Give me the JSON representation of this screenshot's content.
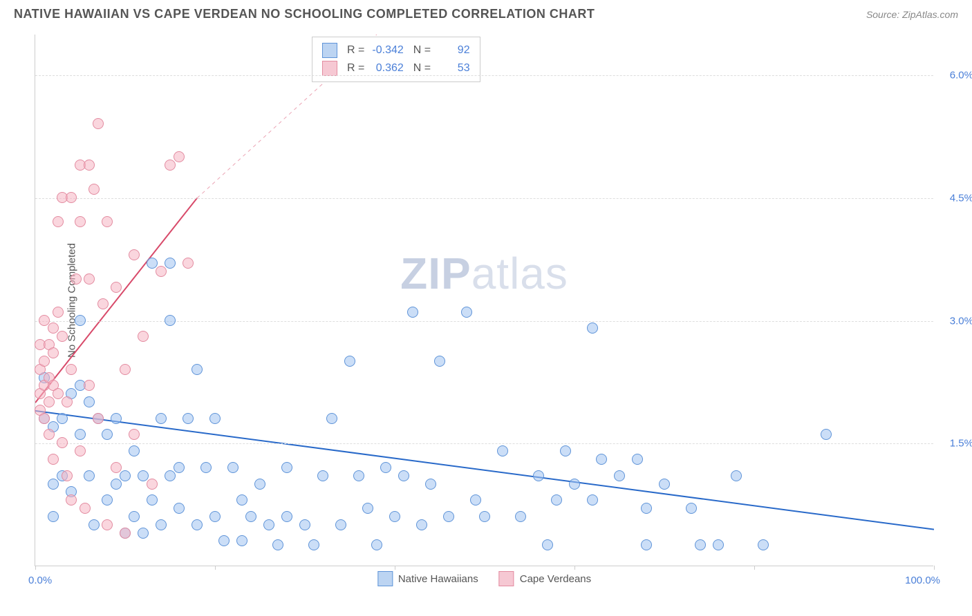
{
  "title": "NATIVE HAWAIIAN VS CAPE VERDEAN NO SCHOOLING COMPLETED CORRELATION CHART",
  "source": "Source: ZipAtlas.com",
  "watermark": {
    "zip": "ZIP",
    "atlas": "atlas"
  },
  "chart": {
    "type": "scatter",
    "yaxis_label": "No Schooling Completed",
    "xlim": [
      0,
      100
    ],
    "ylim": [
      0,
      6.5
    ],
    "xtick_label_min": "0.0%",
    "xtick_label_max": "100.0%",
    "xtick_positions": [
      0,
      20,
      40,
      60,
      80,
      100
    ],
    "yticks": [
      {
        "v": 1.5,
        "label": "1.5%"
      },
      {
        "v": 3.0,
        "label": "3.0%"
      },
      {
        "v": 4.5,
        "label": "4.5%"
      },
      {
        "v": 6.0,
        "label": "6.0%"
      }
    ],
    "grid_color": "#dddddd",
    "background_color": "#ffffff",
    "marker_size": 16,
    "series": [
      {
        "name": "Native Hawaiians",
        "fill": "rgba(160,195,240,0.55)",
        "stroke": "#5f94d8",
        "swatch_fill": "#bcd4f2",
        "swatch_stroke": "#5f94d8",
        "R": "-0.342",
        "N": "92",
        "trend": {
          "x1": 0,
          "y1": 1.9,
          "x2": 100,
          "y2": 0.45,
          "color": "#2869c9",
          "width": 2
        },
        "points": [
          [
            1,
            1.8
          ],
          [
            1,
            2.3
          ],
          [
            2,
            1.7
          ],
          [
            2,
            1.0
          ],
          [
            2,
            0.6
          ],
          [
            3,
            1.8
          ],
          [
            3,
            1.1
          ],
          [
            4,
            2.1
          ],
          [
            4,
            0.9
          ],
          [
            5,
            2.2
          ],
          [
            5,
            1.6
          ],
          [
            6,
            2.0
          ],
          [
            6,
            1.1
          ],
          [
            6.5,
            0.5
          ],
          [
            5,
            3.0
          ],
          [
            7,
            1.8
          ],
          [
            8,
            0.8
          ],
          [
            8,
            1.6
          ],
          [
            9,
            1.0
          ],
          [
            9,
            1.8
          ],
          [
            10,
            0.4
          ],
          [
            10,
            1.1
          ],
          [
            11,
            0.6
          ],
          [
            11,
            1.4
          ],
          [
            12,
            1.1
          ],
          [
            12,
            0.4
          ],
          [
            13,
            0.8
          ],
          [
            13,
            3.7
          ],
          [
            14,
            1.8
          ],
          [
            14,
            0.5
          ],
          [
            15,
            1.1
          ],
          [
            15,
            3.0
          ],
          [
            16,
            0.7
          ],
          [
            16,
            1.2
          ],
          [
            17,
            1.8
          ],
          [
            18,
            0.5
          ],
          [
            18,
            2.4
          ],
          [
            19,
            1.2
          ],
          [
            20,
            0.6
          ],
          [
            20,
            1.8
          ],
          [
            21,
            0.3
          ],
          [
            22,
            1.2
          ],
          [
            23,
            0.8
          ],
          [
            23,
            0.3
          ],
          [
            24,
            0.6
          ],
          [
            25,
            1.0
          ],
          [
            26,
            0.5
          ],
          [
            27,
            0.25
          ],
          [
            28,
            1.2
          ],
          [
            28,
            0.6
          ],
          [
            30,
            0.5
          ],
          [
            31,
            0.25
          ],
          [
            32,
            1.1
          ],
          [
            33,
            1.8
          ],
          [
            34,
            0.5
          ],
          [
            35,
            2.5
          ],
          [
            36,
            1.1
          ],
          [
            37,
            0.7
          ],
          [
            38,
            0.25
          ],
          [
            39,
            1.2
          ],
          [
            40,
            0.6
          ],
          [
            41,
            1.1
          ],
          [
            42,
            3.1
          ],
          [
            43,
            0.5
          ],
          [
            44,
            1.0
          ],
          [
            45,
            2.5
          ],
          [
            46,
            0.6
          ],
          [
            48,
            3.1
          ],
          [
            49,
            0.8
          ],
          [
            50,
            0.6
          ],
          [
            52,
            1.4
          ],
          [
            54,
            0.6
          ],
          [
            56,
            1.1
          ],
          [
            57,
            0.25
          ],
          [
            58,
            0.8
          ],
          [
            59,
            1.4
          ],
          [
            60,
            1.0
          ],
          [
            62,
            2.9
          ],
          [
            62,
            0.8
          ],
          [
            63,
            1.3
          ],
          [
            65,
            1.1
          ],
          [
            67,
            1.3
          ],
          [
            68,
            0.7
          ],
          [
            68,
            0.25
          ],
          [
            70,
            1.0
          ],
          [
            73,
            0.7
          ],
          [
            74,
            0.25
          ],
          [
            76,
            0.25
          ],
          [
            78,
            1.1
          ],
          [
            88,
            1.6
          ],
          [
            81,
            0.25
          ],
          [
            15,
            3.7
          ]
        ]
      },
      {
        "name": "Cape Verdeans",
        "fill": "rgba(245,180,195,0.55)",
        "stroke": "#e38ba0",
        "swatch_fill": "#f6c8d3",
        "swatch_stroke": "#e38ba0",
        "R": "0.362",
        "N": "53",
        "trend": {
          "x1": 0,
          "y1": 2.0,
          "x2": 18,
          "y2": 4.5,
          "color": "#d84a6a",
          "width": 2,
          "dash_x2": 38,
          "dash_y2": 7.2
        },
        "points": [
          [
            0.5,
            2.4
          ],
          [
            0.5,
            2.1
          ],
          [
            0.5,
            1.9
          ],
          [
            0.5,
            2.7
          ],
          [
            1,
            2.2
          ],
          [
            1,
            2.5
          ],
          [
            1,
            1.8
          ],
          [
            1,
            3.0
          ],
          [
            1.5,
            2.7
          ],
          [
            1.5,
            2.0
          ],
          [
            1.5,
            2.3
          ],
          [
            1.5,
            1.6
          ],
          [
            2,
            2.6
          ],
          [
            2,
            2.9
          ],
          [
            2,
            2.2
          ],
          [
            2,
            1.3
          ],
          [
            2.5,
            4.2
          ],
          [
            2.5,
            3.1
          ],
          [
            2.5,
            2.1
          ],
          [
            3,
            4.5
          ],
          [
            3,
            2.8
          ],
          [
            3,
            1.5
          ],
          [
            3.5,
            2.0
          ],
          [
            3.5,
            1.1
          ],
          [
            4,
            4.5
          ],
          [
            4,
            2.4
          ],
          [
            4,
            0.8
          ],
          [
            4.5,
            3.5
          ],
          [
            5,
            4.9
          ],
          [
            5,
            4.2
          ],
          [
            5,
            1.4
          ],
          [
            5.5,
            0.7
          ],
          [
            6,
            3.5
          ],
          [
            6,
            2.2
          ],
          [
            6.5,
            4.6
          ],
          [
            7,
            5.4
          ],
          [
            7,
            1.8
          ],
          [
            7.5,
            3.2
          ],
          [
            8,
            4.2
          ],
          [
            8,
            0.5
          ],
          [
            9,
            3.4
          ],
          [
            9,
            1.2
          ],
          [
            10,
            2.4
          ],
          [
            10,
            0.4
          ],
          [
            11,
            3.8
          ],
          [
            11,
            1.6
          ],
          [
            12,
            2.8
          ],
          [
            13,
            1.0
          ],
          [
            14,
            3.6
          ],
          [
            15,
            4.9
          ],
          [
            16,
            5.0
          ],
          [
            17,
            3.7
          ],
          [
            6,
            4.9
          ]
        ]
      }
    ]
  },
  "legend": {
    "series1_label": "Native Hawaiians",
    "series2_label": "Cape Verdeans"
  }
}
